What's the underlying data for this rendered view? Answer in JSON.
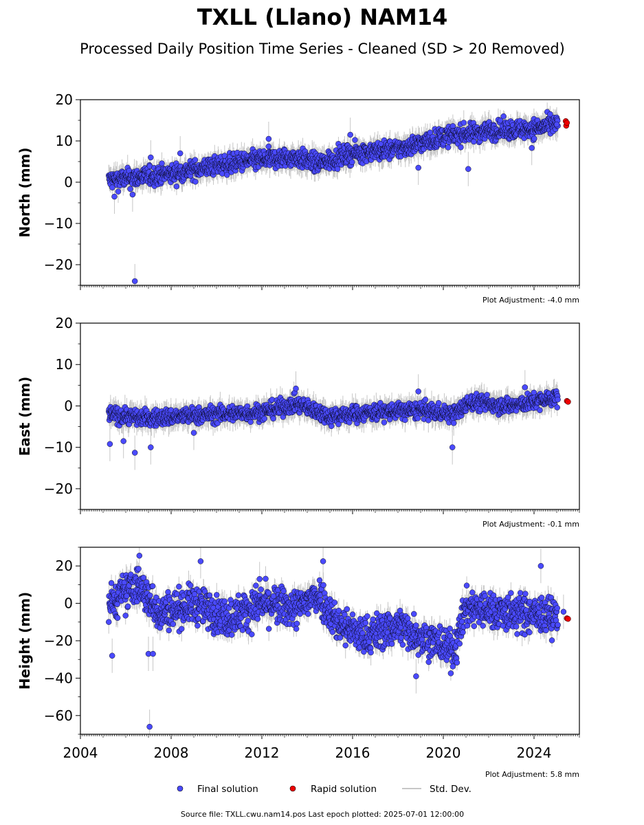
{
  "title": "TXLL (Llano) NAM14",
  "subtitle": "Processed Daily Position Time Series - Cleaned (SD > 20 Removed)",
  "footer": "Source file: TXLL.cwu.nam14.pos  Last epoch plotted: 2025-07-01 12:00:00",
  "colors": {
    "final": "#4a4aff",
    "rapid": "#ee0000",
    "stddev": "#b4b4b4",
    "edge": "#000000"
  },
  "legend": {
    "final": "Final solution",
    "rapid": "Rapid solution",
    "stddev": "Std. Dev."
  },
  "chart_data": [
    {
      "type": "scatter",
      "ylabel": "North (mm)",
      "adjustment": "Plot Adjustment: -4.0 mm",
      "xlim": [
        2004,
        2026
      ],
      "ylim": [
        -25,
        20
      ],
      "yticks": [
        -20,
        -10,
        0,
        10,
        20
      ],
      "xticks": [
        2004,
        2008,
        2012,
        2016,
        2020,
        2024
      ],
      "show_xtick_labels": false,
      "trend": [
        [
          2005.3,
          0.5
        ],
        [
          2008,
          2
        ],
        [
          2010,
          4
        ],
        [
          2012,
          5.5
        ],
        [
          2013.5,
          6
        ],
        [
          2014.5,
          4.5
        ],
        [
          2016,
          7
        ],
        [
          2018,
          8
        ],
        [
          2020,
          11
        ],
        [
          2022,
          12.5
        ],
        [
          2024,
          13
        ],
        [
          2025,
          14
        ]
      ],
      "scatter": 1.6,
      "final_outliers": [
        [
          2005.5,
          -3.5
        ],
        [
          2006.3,
          -3
        ],
        [
          2006.4,
          -24
        ],
        [
          2007.1,
          6
        ],
        [
          2008.4,
          7
        ],
        [
          2012.3,
          10.5
        ],
        [
          2018.9,
          3.5
        ],
        [
          2021.1,
          3.2
        ],
        [
          2023.9,
          8.3
        ],
        [
          2015.9,
          11.5
        ],
        [
          2025.0,
          14
        ]
      ],
      "rapid": [
        [
          2025.4,
          14.8
        ],
        [
          2025.42,
          13.7
        ],
        [
          2025.45,
          14.4
        ]
      ]
    },
    {
      "type": "scatter",
      "ylabel": "East (mm)",
      "adjustment": "Plot Adjustment: -0.1 mm",
      "xlim": [
        2004,
        2026
      ],
      "ylim": [
        -25,
        20
      ],
      "yticks": [
        -20,
        -10,
        0,
        10,
        20
      ],
      "xticks": [
        2004,
        2008,
        2012,
        2016,
        2020,
        2024
      ],
      "show_xtick_labels": false,
      "trend": [
        [
          2005.3,
          -2
        ],
        [
          2007,
          -3
        ],
        [
          2010,
          -2
        ],
        [
          2012,
          -1.5
        ],
        [
          2013.5,
          0.5
        ],
        [
          2015,
          -2.5
        ],
        [
          2017,
          -1.5
        ],
        [
          2019,
          -1
        ],
        [
          2020.5,
          -2
        ],
        [
          2021.2,
          1
        ],
        [
          2023,
          0
        ],
        [
          2025,
          2
        ]
      ],
      "scatter": 1.4,
      "final_outliers": [
        [
          2005.3,
          -9.2
        ],
        [
          2005.9,
          -8.5
        ],
        [
          2006.4,
          -11.3
        ],
        [
          2007.1,
          -10
        ],
        [
          2009,
          -6.5
        ],
        [
          2020.4,
          -10
        ],
        [
          2013.5,
          4.2
        ],
        [
          2018.9,
          3.5
        ],
        [
          2023.6,
          4.5
        ]
      ],
      "rapid": [
        [
          2025.45,
          1.2
        ],
        [
          2025.5,
          1.0
        ]
      ]
    },
    {
      "type": "scatter",
      "ylabel": "Height (mm)",
      "adjustment": "Plot Adjustment: 5.8 mm",
      "xlim": [
        2004,
        2026
      ],
      "ylim": [
        -70,
        30
      ],
      "yticks": [
        -60,
        -40,
        -20,
        0,
        20
      ],
      "xticks": [
        2004,
        2008,
        2012,
        2016,
        2020,
        2024
      ],
      "show_xtick_labels": true,
      "trend": [
        [
          2005.3,
          0
        ],
        [
          2006.5,
          10
        ],
        [
          2007.5,
          -5
        ],
        [
          2009,
          0
        ],
        [
          2010.5,
          -8
        ],
        [
          2012,
          0
        ],
        [
          2013.5,
          -3
        ],
        [
          2014.5,
          5
        ],
        [
          2015.3,
          -10
        ],
        [
          2016.5,
          -18
        ],
        [
          2018,
          -12
        ],
        [
          2019.5,
          -20
        ],
        [
          2020.5,
          -25
        ],
        [
          2021,
          -2
        ],
        [
          2023,
          -5
        ],
        [
          2025,
          -7
        ]
      ],
      "scatter": 7,
      "final_outliers": [
        [
          2005.4,
          -28
        ],
        [
          2006.6,
          25.5
        ],
        [
          2007,
          -27
        ],
        [
          2007.2,
          -27
        ],
        [
          2007.05,
          -66
        ],
        [
          2009.3,
          22.5
        ],
        [
          2014.7,
          22.5
        ],
        [
          2018.8,
          -39
        ],
        [
          2024.3,
          20
        ],
        [
          2011.9,
          13
        ],
        [
          2025.3,
          -4.5
        ]
      ],
      "rapid": [
        [
          2025.45,
          -8
        ],
        [
          2025.5,
          -8.3
        ]
      ]
    }
  ]
}
